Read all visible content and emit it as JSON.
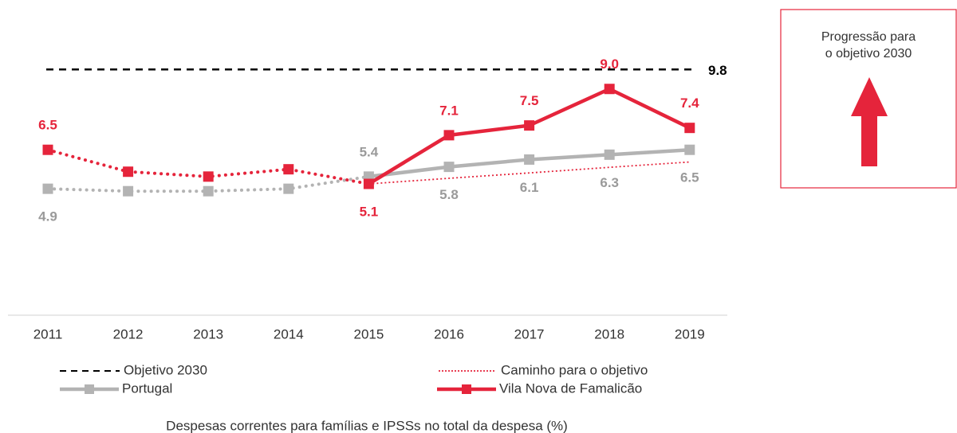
{
  "chart_data": {
    "type": "line",
    "title": "Despesas correntes para famílias e IPSSs no total da despesa (%)",
    "categories": [
      "2011",
      "2012",
      "2013",
      "2014",
      "2015",
      "2016",
      "2017",
      "2018",
      "2019"
    ],
    "ylim": [
      0,
      12
    ],
    "target": {
      "name": "Objetivo 2030",
      "value": 9.8,
      "value_label": "9.8",
      "color": "#000000"
    },
    "series": [
      {
        "name": "Caminho para o objetivo",
        "color": "#e5243b",
        "style": "dotted",
        "values": [
          null,
          null,
          null,
          null,
          5.1,
          5.33,
          5.55,
          5.78,
          6.0
        ]
      },
      {
        "name": "Portugal",
        "color": "#b3b3b3",
        "label_color": "#9a9a9a",
        "marker": "square",
        "dotted_until": "2015",
        "values": [
          4.9,
          4.8,
          4.8,
          4.9,
          5.4,
          5.8,
          6.1,
          6.3,
          6.5
        ],
        "value_labels": [
          "4.9",
          null,
          null,
          null,
          "5.4",
          "5.8",
          "6.1",
          "6.3",
          "6.5"
        ]
      },
      {
        "name": "Vila Nova de Famalicão",
        "color": "#e5243b",
        "label_color": "#e5243b",
        "marker": "square",
        "dotted_until": "2015",
        "values": [
          6.5,
          5.6,
          5.4,
          5.7,
          5.1,
          7.1,
          7.5,
          9.0,
          7.4
        ],
        "value_labels": [
          "6.5",
          null,
          null,
          null,
          "5.1",
          "7.1",
          "7.5",
          "9.0",
          "7.4"
        ]
      }
    ],
    "side_panel": {
      "lines": [
        "Progressão para",
        "o objetivo 2030"
      ],
      "arrow": "up",
      "color": "#e5243b"
    }
  }
}
